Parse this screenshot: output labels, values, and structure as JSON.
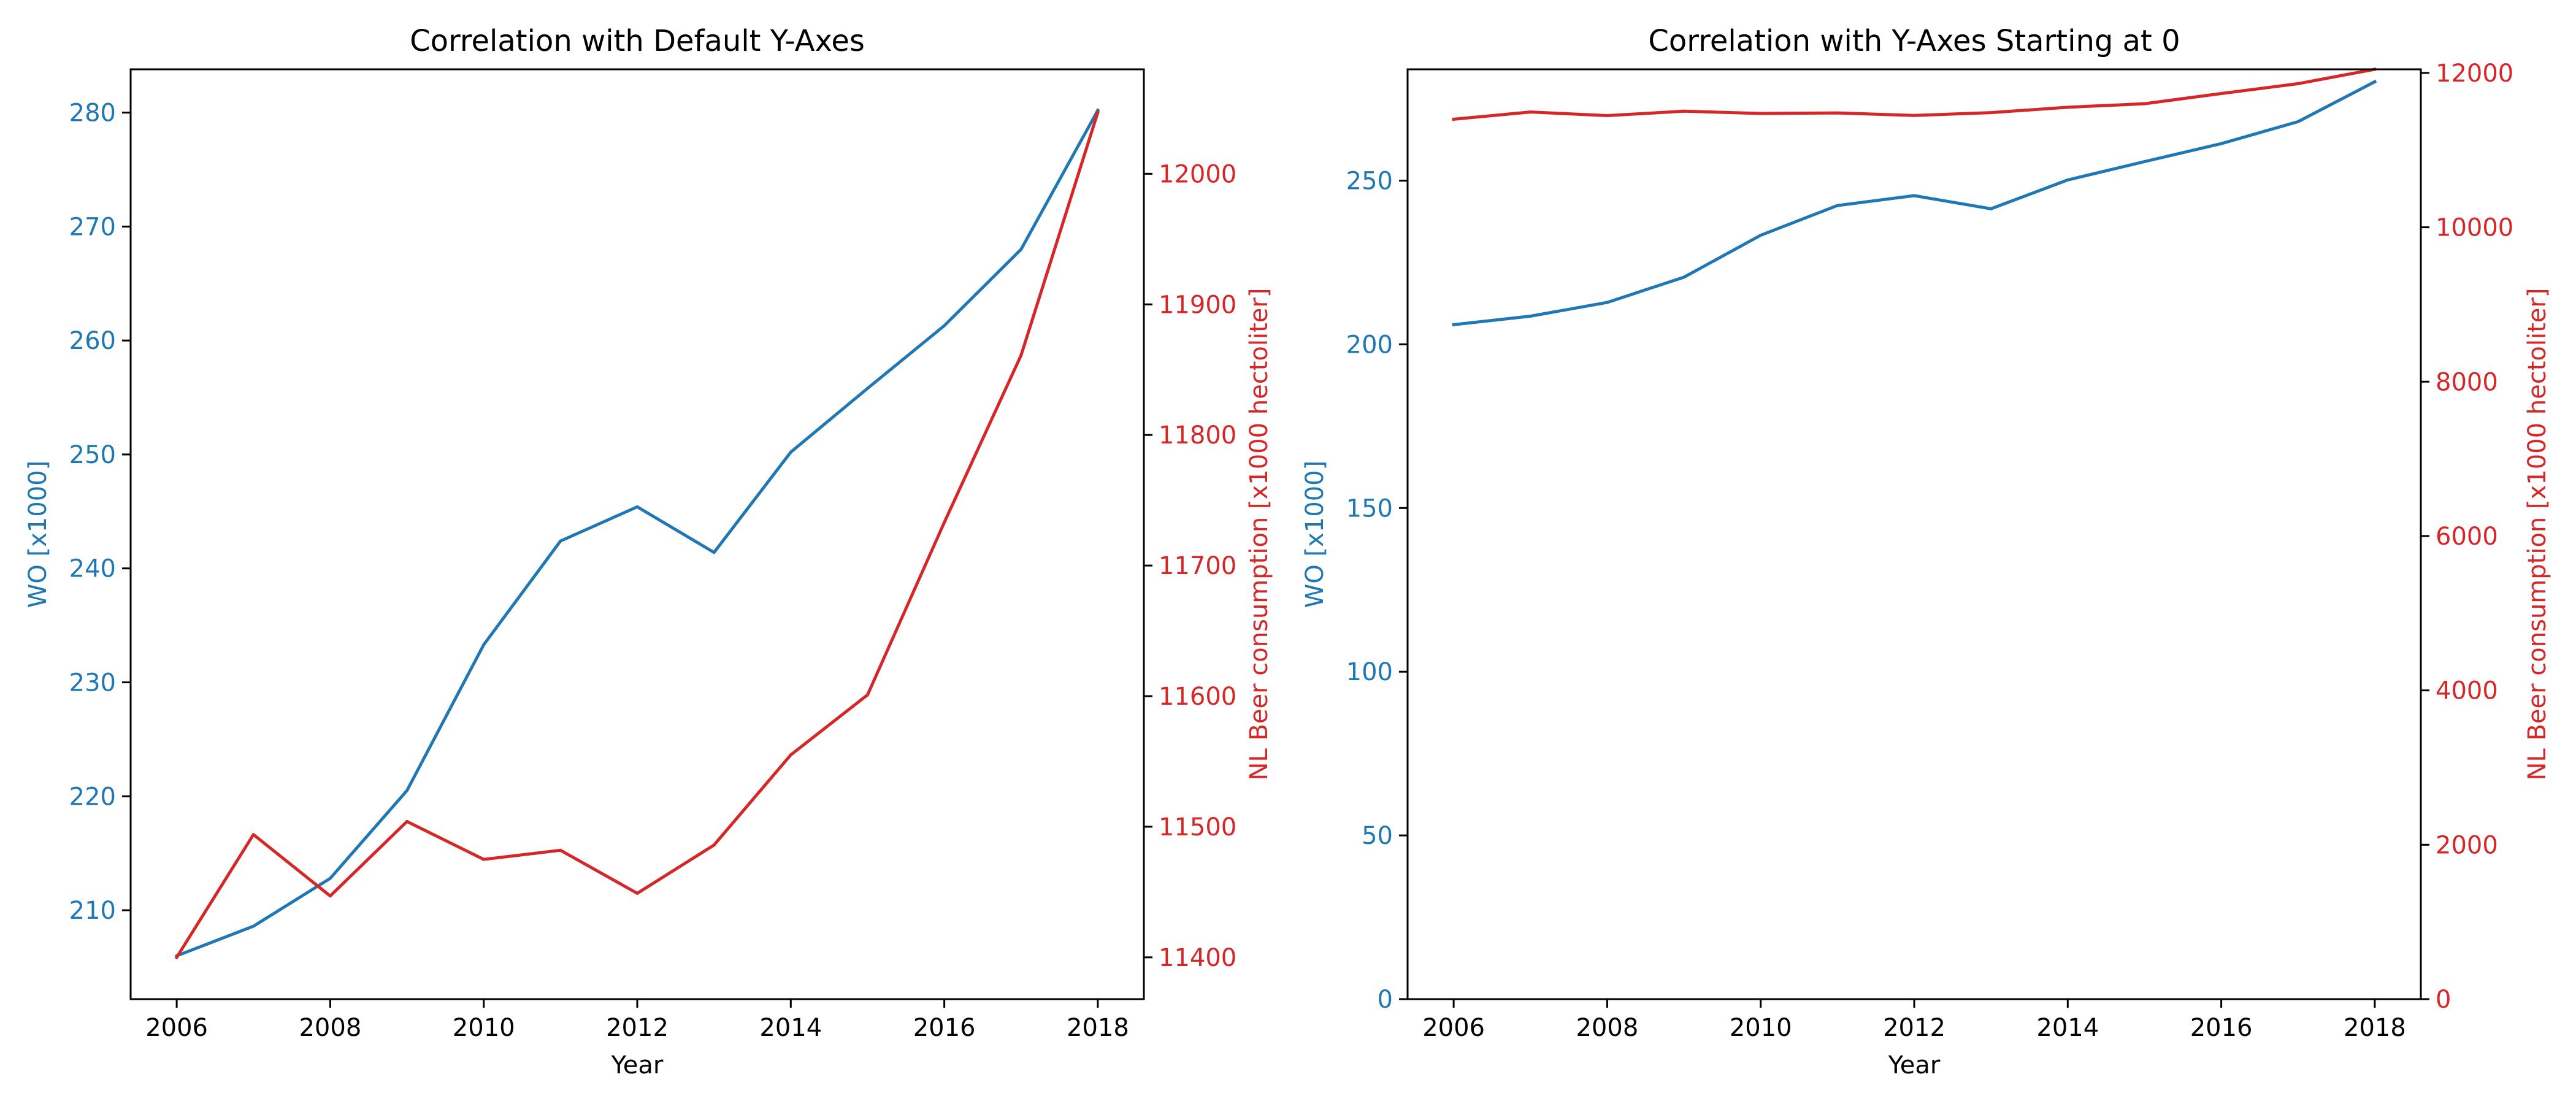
{
  "colors": {
    "wo": "#1f77b4",
    "beer": "#d62728",
    "axis": "#000000",
    "background": "#ffffff"
  },
  "chart_data": [
    {
      "type": "line",
      "title": "Correlation with Default Y-Axes",
      "xlabel": "Year",
      "ylabel_left": "WO [x1000]",
      "ylabel_right": "NL Beer consumption [x1000 hectoliter]",
      "x": [
        2006,
        2007,
        2008,
        2009,
        2010,
        2011,
        2012,
        2013,
        2014,
        2015,
        2016,
        2017,
        2018
      ],
      "xlim": [
        2005.4,
        2018.6
      ],
      "xticks": [
        "2006",
        "2008",
        "2010",
        "2012",
        "2014",
        "2016",
        "2018"
      ],
      "ylim_left": [
        202.2,
        283.8
      ],
      "yticks_left": [
        "210",
        "220",
        "230",
        "240",
        "250",
        "260",
        "270",
        "280"
      ],
      "ylim_right": [
        11368,
        12080
      ],
      "yticks_right": [
        "11400",
        "11500",
        "11600",
        "11700",
        "11800",
        "11900",
        "12000"
      ],
      "grid": false,
      "series": [
        {
          "name": "WO [x1000]",
          "axis": "left",
          "values": [
            206.0,
            208.6,
            212.8,
            220.5,
            233.3,
            242.4,
            245.4,
            241.4,
            250.2,
            255.8,
            261.3,
            268.0,
            280.2
          ]
        },
        {
          "name": "NL Beer consumption [x1000 hectoliter]",
          "axis": "right",
          "values": [
            11400,
            11494,
            11447,
            11504,
            11475,
            11482,
            11449,
            11486,
            11555,
            11601,
            11733,
            11861,
            12047
          ]
        }
      ]
    },
    {
      "type": "line",
      "title": "Correlation with Y-Axes Starting at 0",
      "xlabel": "Year",
      "ylabel_left": "WO [x1000]",
      "ylabel_right": "NL Beer consumption [x1000 hectoliter]",
      "x": [
        2006,
        2007,
        2008,
        2009,
        2010,
        2011,
        2012,
        2013,
        2014,
        2015,
        2016,
        2017,
        2018
      ],
      "xlim": [
        2005.4,
        2018.6
      ],
      "xticks": [
        "2006",
        "2008",
        "2010",
        "2012",
        "2014",
        "2016",
        "2018"
      ],
      "ylim_left": [
        0,
        284.0
      ],
      "yticks_left": [
        "0",
        "50",
        "100",
        "150",
        "200",
        "250"
      ],
      "ylim_right": [
        0,
        12047
      ],
      "yticks_right": [
        "0",
        "2000",
        "4000",
        "6000",
        "8000",
        "10000",
        "12000"
      ],
      "grid": false,
      "series": [
        {
          "name": "WO [x1000]",
          "axis": "left",
          "values": [
            206.0,
            208.6,
            212.8,
            220.5,
            233.3,
            242.4,
            245.4,
            241.4,
            250.2,
            255.8,
            261.3,
            268.0,
            280.2
          ]
        },
        {
          "name": "NL Beer consumption [x1000 hectoliter]",
          "axis": "right",
          "values": [
            11400,
            11494,
            11447,
            11504,
            11475,
            11482,
            11449,
            11486,
            11555,
            11601,
            11733,
            11861,
            12047
          ]
        }
      ]
    }
  ]
}
